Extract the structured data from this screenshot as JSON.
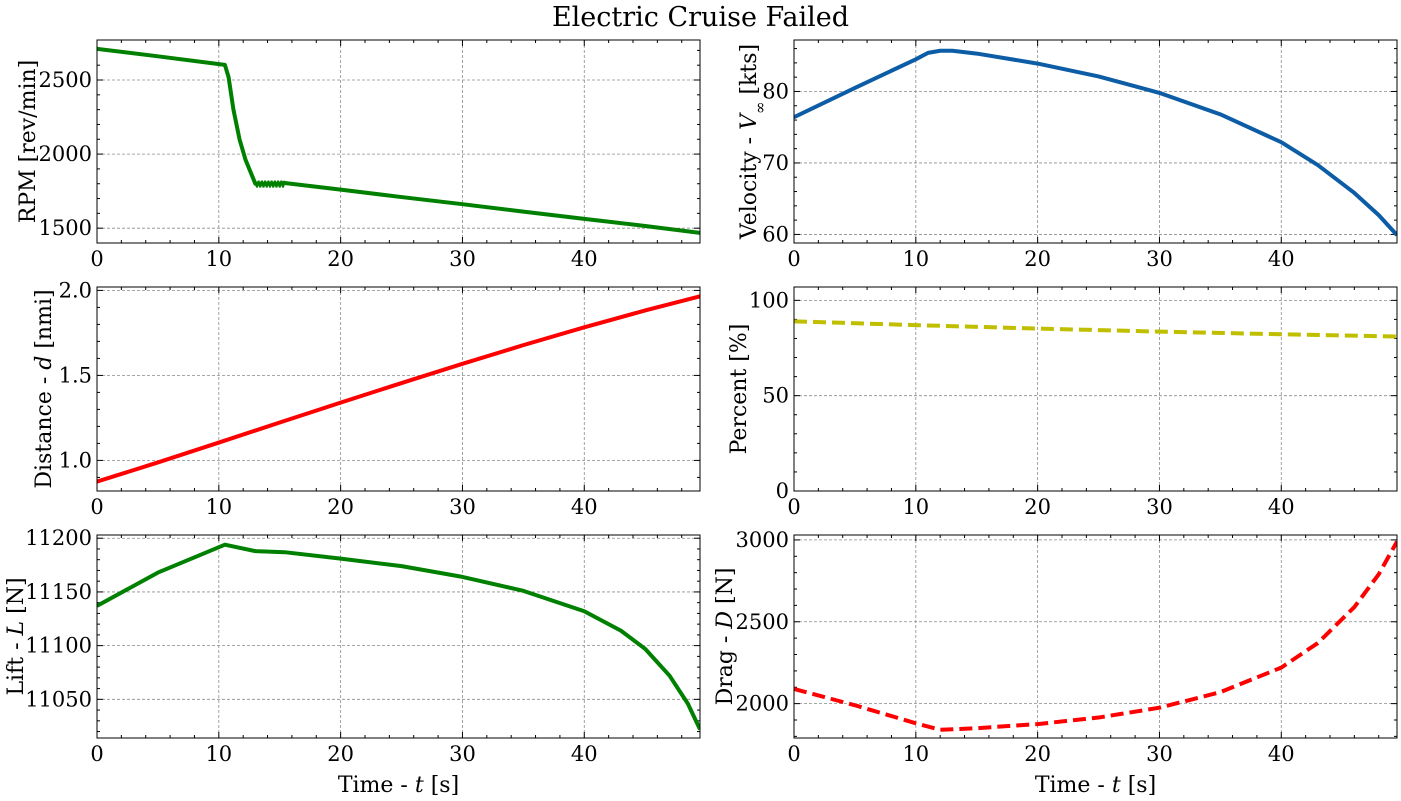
{
  "figure": {
    "title": "Electric Cruise Failed"
  },
  "chart_data": [
    {
      "id": "rpm",
      "type": "line",
      "xlabel": "",
      "ylabel": "RPM [rev/min]",
      "xlim": [
        0,
        49.5
      ],
      "ylim": [
        1400,
        2770
      ],
      "xticks": [
        0,
        10,
        20,
        30,
        40
      ],
      "yticks": [
        1500,
        2000,
        2500
      ],
      "grid": true,
      "series": [
        {
          "color": "#008000",
          "dash": "none",
          "x": [
            0,
            5,
            10.5,
            10.8,
            11.2,
            11.7,
            12.2,
            12.7,
            13.0,
            14.0,
            15.0,
            15.4,
            20,
            25,
            30,
            35,
            40,
            45,
            49.5
          ],
          "y": [
            2710,
            2660,
            2602,
            2520,
            2300,
            2100,
            1960,
            1860,
            1800,
            1800,
            1800,
            1805,
            1760,
            1710,
            1662,
            1612,
            1563,
            1515,
            1468
          ]
        }
      ],
      "oscillation": {
        "x_start": 13.0,
        "x_end": 15.4,
        "y_min": 1775,
        "y_max": 1820,
        "color": "#008000"
      }
    },
    {
      "id": "velocity",
      "type": "line",
      "xlabel": "",
      "ylabel": "Velocity - V∞ [kts]",
      "xlim": [
        0,
        49.5
      ],
      "ylim": [
        58.8,
        87.2
      ],
      "xticks": [
        0,
        10,
        20,
        30,
        40
      ],
      "yticks": [
        60,
        70,
        80
      ],
      "grid": true,
      "series": [
        {
          "color": "#0c5da5",
          "dash": "none",
          "x": [
            0,
            5,
            10,
            11,
            12,
            13,
            15,
            20,
            25,
            30,
            35,
            40,
            43,
            46,
            48,
            49.5
          ],
          "y": [
            76.4,
            80.5,
            84.5,
            85.4,
            85.7,
            85.7,
            85.3,
            83.9,
            82.1,
            79.8,
            76.8,
            72.9,
            69.7,
            65.8,
            62.7,
            59.9
          ]
        }
      ]
    },
    {
      "id": "distance",
      "type": "line",
      "xlabel": "",
      "ylabel": "Distance - d [nmi]",
      "xlim": [
        0,
        49.5
      ],
      "ylim": [
        0.82,
        2.02
      ],
      "xticks": [
        0,
        10,
        20,
        30,
        40
      ],
      "yticks": [
        1.0,
        1.5,
        2.0
      ],
      "ytick_labels": [
        "1.0",
        "1.5",
        "2.0"
      ],
      "grid": true,
      "series": [
        {
          "color": "#ff0000",
          "dash": "none",
          "x": [
            0,
            5,
            10,
            15,
            20,
            25,
            30,
            35,
            40,
            45,
            49.5
          ],
          "y": [
            0.875,
            0.988,
            1.105,
            1.223,
            1.34,
            1.455,
            1.568,
            1.678,
            1.783,
            1.882,
            1.965
          ]
        }
      ]
    },
    {
      "id": "percent",
      "type": "line",
      "xlabel": "",
      "ylabel": "Percent [%]",
      "xlim": [
        0,
        49.5
      ],
      "ylim": [
        0,
        107
      ],
      "xticks": [
        0,
        10,
        20,
        30,
        40
      ],
      "yticks": [
        0,
        50,
        100
      ],
      "grid": true,
      "series": [
        {
          "color": "#bfbf00",
          "dash": "13 6",
          "x": [
            0,
            10,
            20,
            30,
            40,
            49.5
          ],
          "y": [
            89.0,
            87.0,
            85.2,
            83.6,
            82.2,
            81.0
          ]
        }
      ]
    },
    {
      "id": "lift",
      "type": "line",
      "xlabel": "Time - t [s]",
      "ylabel": "Lift - L [N]",
      "xlim": [
        0,
        49.5
      ],
      "ylim": [
        11014,
        11203
      ],
      "xticks": [
        0,
        10,
        20,
        30,
        40
      ],
      "yticks": [
        11050,
        11100,
        11150,
        11200
      ],
      "grid": true,
      "series": [
        {
          "color": "#008000",
          "dash": "none",
          "x": [
            0,
            5,
            10.5,
            13,
            15.4,
            20,
            25,
            30,
            35,
            40,
            43,
            45,
            47,
            48.5,
            49.5
          ],
          "y": [
            11137,
            11168,
            11194,
            11188,
            11187,
            11181,
            11174,
            11164,
            11151,
            11132,
            11114,
            11097,
            11072,
            11046,
            11022
          ]
        }
      ]
    },
    {
      "id": "drag",
      "type": "line",
      "xlabel": "Time - t [s]",
      "ylabel": "Drag - D [N]",
      "xlim": [
        0,
        49.5
      ],
      "ylim": [
        1790,
        3030
      ],
      "xticks": [
        0,
        10,
        20,
        30,
        40
      ],
      "yticks": [
        2000,
        2500,
        3000
      ],
      "grid": true,
      "series": [
        {
          "color": "#ff0000",
          "dash": "13 6",
          "x": [
            0,
            5,
            10,
            12,
            15,
            20,
            25,
            30,
            35,
            40,
            43,
            46,
            48,
            49.5
          ],
          "y": [
            2090,
            1990,
            1880,
            1840,
            1850,
            1875,
            1915,
            1975,
            2070,
            2220,
            2370,
            2590,
            2790,
            2990
          ]
        }
      ]
    }
  ]
}
